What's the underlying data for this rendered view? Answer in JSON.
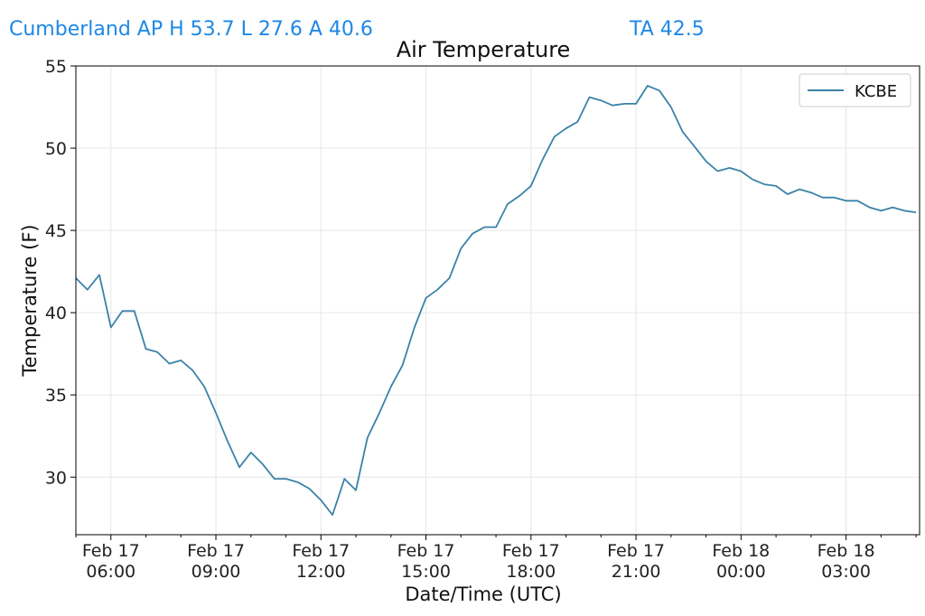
{
  "header": {
    "station_line": "Cumberland AP H 53.7 L 27.6 A 40.6",
    "ta_line": "TA 42.5"
  },
  "colors": {
    "header_text": "#1e88e5",
    "series_line": "#3b82a8",
    "grid": "#e6e6e6"
  },
  "chart_data": {
    "type": "line",
    "title": "Air Temperature",
    "xlabel": "Date/Time (UTC)",
    "ylabel": "Temperature (F)",
    "ylim": [
      26.5,
      55
    ],
    "xlim_hours": [
      5.0,
      29.1
    ],
    "grid": true,
    "legend_position": "top-right",
    "y_ticks": [
      30,
      35,
      40,
      45,
      50,
      55
    ],
    "x_ticks": [
      {
        "hour": 6,
        "line1": "Feb 17",
        "line2": "06:00"
      },
      {
        "hour": 9,
        "line1": "Feb 17",
        "line2": "09:00"
      },
      {
        "hour": 12,
        "line1": "Feb 17",
        "line2": "12:00"
      },
      {
        "hour": 15,
        "line1": "Feb 17",
        "line2": "15:00"
      },
      {
        "hour": 18,
        "line1": "Feb 17",
        "line2": "18:00"
      },
      {
        "hour": 21,
        "line1": "Feb 17",
        "line2": "21:00"
      },
      {
        "hour": 24,
        "line1": "Feb 18",
        "line2": "00:00"
      },
      {
        "hour": 27,
        "line1": "Feb 18",
        "line2": "03:00"
      }
    ],
    "series": [
      {
        "name": "KCBE",
        "x": [
          5.0,
          5.33,
          5.67,
          6.0,
          6.33,
          6.67,
          7.0,
          7.33,
          7.67,
          8.0,
          8.33,
          8.67,
          9.0,
          9.33,
          9.67,
          10.0,
          10.33,
          10.67,
          11.0,
          11.33,
          11.67,
          12.0,
          12.33,
          12.67,
          13.0,
          13.33,
          13.67,
          14.0,
          14.33,
          14.67,
          15.0,
          15.33,
          15.67,
          16.0,
          16.33,
          16.67,
          17.0,
          17.33,
          17.67,
          18.0,
          18.33,
          18.67,
          19.0,
          19.33,
          19.67,
          20.0,
          20.33,
          20.67,
          21.0,
          21.33,
          21.67,
          22.0,
          22.33,
          22.67,
          23.0,
          23.33,
          23.67,
          24.0,
          24.33,
          24.67,
          25.0,
          25.33,
          25.67,
          26.0,
          26.33,
          26.67,
          27.0,
          27.33,
          27.67,
          28.0,
          28.33,
          28.67,
          29.0
        ],
        "y": [
          42.1,
          41.4,
          42.3,
          39.1,
          40.1,
          40.1,
          37.8,
          37.6,
          36.9,
          37.1,
          36.5,
          35.5,
          33.9,
          32.2,
          30.6,
          31.5,
          30.8,
          29.9,
          29.9,
          29.7,
          29.3,
          28.6,
          27.7,
          29.9,
          29.2,
          32.4,
          33.9,
          35.5,
          36.8,
          39.1,
          40.9,
          41.4,
          42.1,
          43.9,
          44.8,
          45.2,
          45.2,
          46.6,
          47.1,
          47.7,
          49.3,
          50.7,
          51.2,
          51.6,
          53.1,
          52.9,
          52.6,
          52.7,
          52.7,
          53.8,
          53.5,
          52.5,
          51.0,
          50.1,
          49.2,
          48.6,
          48.8,
          48.6,
          48.1,
          47.8,
          47.7,
          47.2,
          47.5,
          47.3,
          47.0,
          47.0,
          46.8,
          46.8,
          46.4,
          46.2,
          46.4,
          46.2,
          46.1
        ]
      }
    ]
  }
}
